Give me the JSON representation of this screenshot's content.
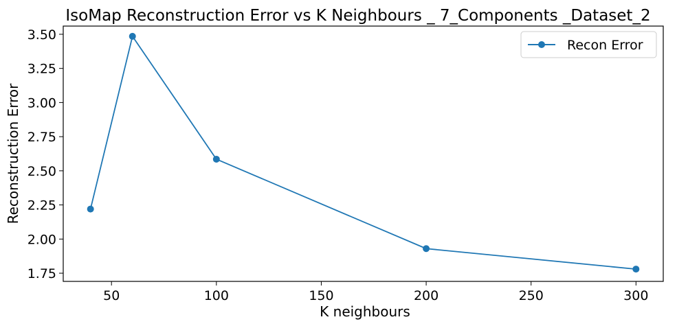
{
  "chart_data": {
    "type": "line",
    "title": "IsoMap Reconstruction Error vs K Neighbours _ 7_Components _Dataset_2",
    "xlabel": "K neighbours",
    "ylabel": "Reconstruction Error",
    "x": [
      40,
      60,
      100,
      200,
      300
    ],
    "series": [
      {
        "name": "Recon Error",
        "values": [
          2.22,
          3.485,
          2.585,
          1.93,
          1.78
        ],
        "color": "#1f77b4"
      }
    ],
    "xlim": [
      27,
      313
    ],
    "ylim": [
      1.69,
      3.56
    ],
    "xticks": [
      50,
      100,
      150,
      200,
      250,
      300
    ],
    "xtick_labels": [
      "50",
      "100",
      "150",
      "200",
      "250",
      "300"
    ],
    "yticks": [
      1.75,
      2.0,
      2.25,
      2.5,
      2.75,
      3.0,
      3.25,
      3.5
    ],
    "ytick_labels": [
      "1.75",
      "2.00",
      "2.25",
      "2.50",
      "2.75",
      "3.00",
      "3.25",
      "3.50"
    ],
    "grid": false,
    "legend_position": "top-right"
  }
}
